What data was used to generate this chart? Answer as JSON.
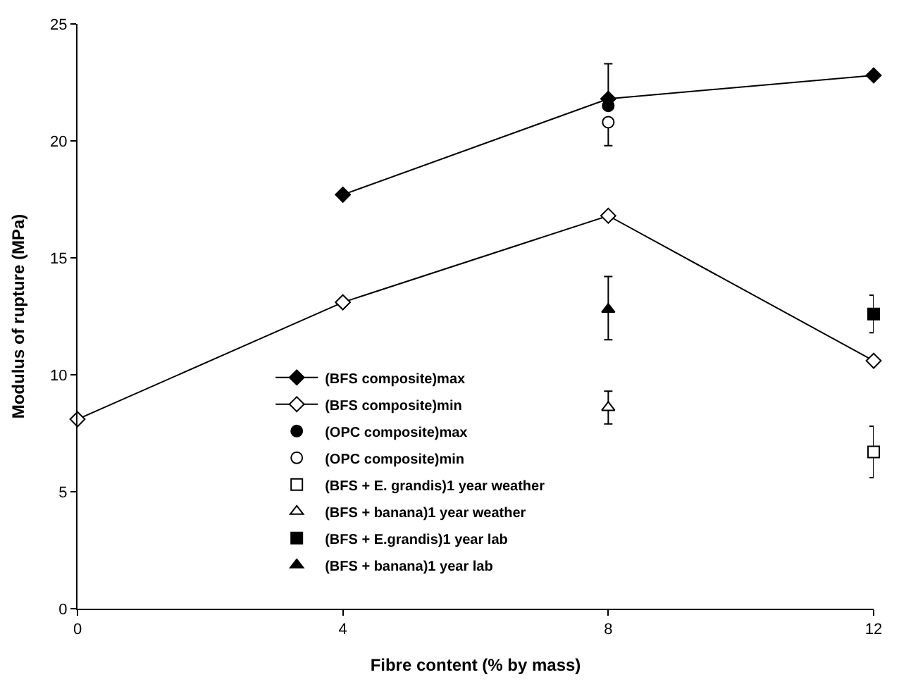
{
  "chart_data": {
    "type": "line",
    "xlabel": "Fibre content (% by mass)",
    "ylabel": "Modulus of rupture (MPa)",
    "xlim": [
      0,
      12
    ],
    "xticks": [
      0,
      4,
      8,
      12
    ],
    "ylim": [
      0,
      25
    ],
    "yticks": [
      0,
      5,
      10,
      15,
      20,
      25
    ],
    "legend": "bottom left",
    "series": [
      {
        "name": "(BFS composite)max",
        "marker": "diamond",
        "color": "#000000",
        "x": [
          4,
          8,
          12
        ],
        "values": [
          17.7,
          21.8,
          22.8
        ]
      },
      {
        "name": "(BFS composite)min",
        "marker": "diamond",
        "color": "#ffffff",
        "x": [
          0,
          4,
          8,
          12
        ],
        "values": [
          8.1,
          13.1,
          16.8,
          10.6
        ]
      },
      {
        "name": "(OPC composite)max",
        "type": "scatter",
        "marker": "circle",
        "color": "#000000",
        "x": [
          8
        ],
        "values": [
          21.5
        ],
        "errors": [
          [
            21.5,
            23.3
          ]
        ]
      },
      {
        "name": "(OPC composite)min",
        "type": "scatter",
        "marker": "circle",
        "color": "#ffffff",
        "x": [
          8
        ],
        "values": [
          20.8
        ],
        "errors": [
          [
            19.8,
            20.8
          ]
        ]
      },
      {
        "name": "(BFS + E. grandis)1 year weather",
        "type": "scatter",
        "marker": "square",
        "color": "#ffffff",
        "x": [
          12
        ],
        "values": [
          6.7
        ],
        "errors": [
          [
            5.6,
            7.8
          ]
        ]
      },
      {
        "name": "(BFS + banana)1 year weather",
        "type": "scatter",
        "marker": "triangle",
        "color": "#ffffff",
        "x": [
          8
        ],
        "values": [
          8.6
        ],
        "errors": [
          [
            7.9,
            9.3
          ]
        ]
      },
      {
        "name": "(BFS + E.grandis)1 year lab",
        "type": "scatter",
        "marker": "square",
        "color": "#000000",
        "x": [
          12
        ],
        "values": [
          12.6
        ],
        "errors": [
          [
            11.8,
            13.4
          ]
        ]
      },
      {
        "name": "(BFS + banana)1 year lab",
        "type": "scatter",
        "marker": "triangle",
        "color": "#000000",
        "x": [
          8
        ],
        "values": [
          12.8
        ],
        "errors": [
          [
            11.5,
            14.2
          ]
        ]
      }
    ]
  }
}
